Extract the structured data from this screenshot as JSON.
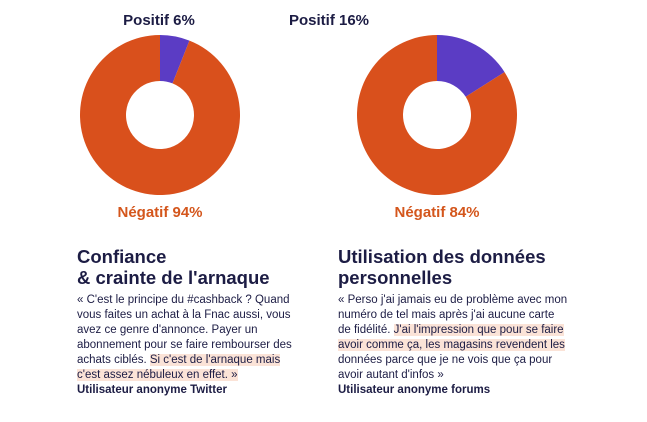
{
  "chart_data": [
    {
      "type": "pie",
      "categories": [
        "Positif",
        "Négatif"
      ],
      "values": [
        6,
        94
      ],
      "colors": [
        "#5b3cc4",
        "#d9501c"
      ],
      "labels": {
        "positive": "Positif 6%",
        "negative": "Négatif 94%"
      }
    },
    {
      "type": "pie",
      "categories": [
        "Positif",
        "Négatif"
      ],
      "values": [
        16,
        84
      ],
      "colors": [
        "#5b3cc4",
        "#d9501c"
      ],
      "labels": {
        "positive": "Positif 16%",
        "negative": "Négatif 84%"
      }
    }
  ],
  "left": {
    "title_line1": "Confiance",
    "title_line2": "& crainte de l'arnaque",
    "quote_plain": "« C'est le principe du #cashback ? Quand vous faites un achat à la Fnac aussi, vous avez ce genre d'annonce. Payer un abonnement pour se faire rembourser des achats ciblés. ",
    "quote_highlight": "Si c'est de l'arnaque mais c'est assez nébuleux en effet. »",
    "author": "Utilisateur anonyme Twitter"
  },
  "right": {
    "title_line1": "Utilisation des données",
    "title_line2": "personnelles",
    "quote_plain": "« Perso j'ai jamais eu de problème avec mon numéro de tel mais après j'ai aucune carte de fidélité. ",
    "quote_highlight": "J'ai l'impression que pour se faire avoir comme ça, les magasins revendent les",
    "quote_tail": " données parce que je ne vois que ça pour avoir autant d'infos »",
    "author": "Utilisateur anonyme forums"
  }
}
